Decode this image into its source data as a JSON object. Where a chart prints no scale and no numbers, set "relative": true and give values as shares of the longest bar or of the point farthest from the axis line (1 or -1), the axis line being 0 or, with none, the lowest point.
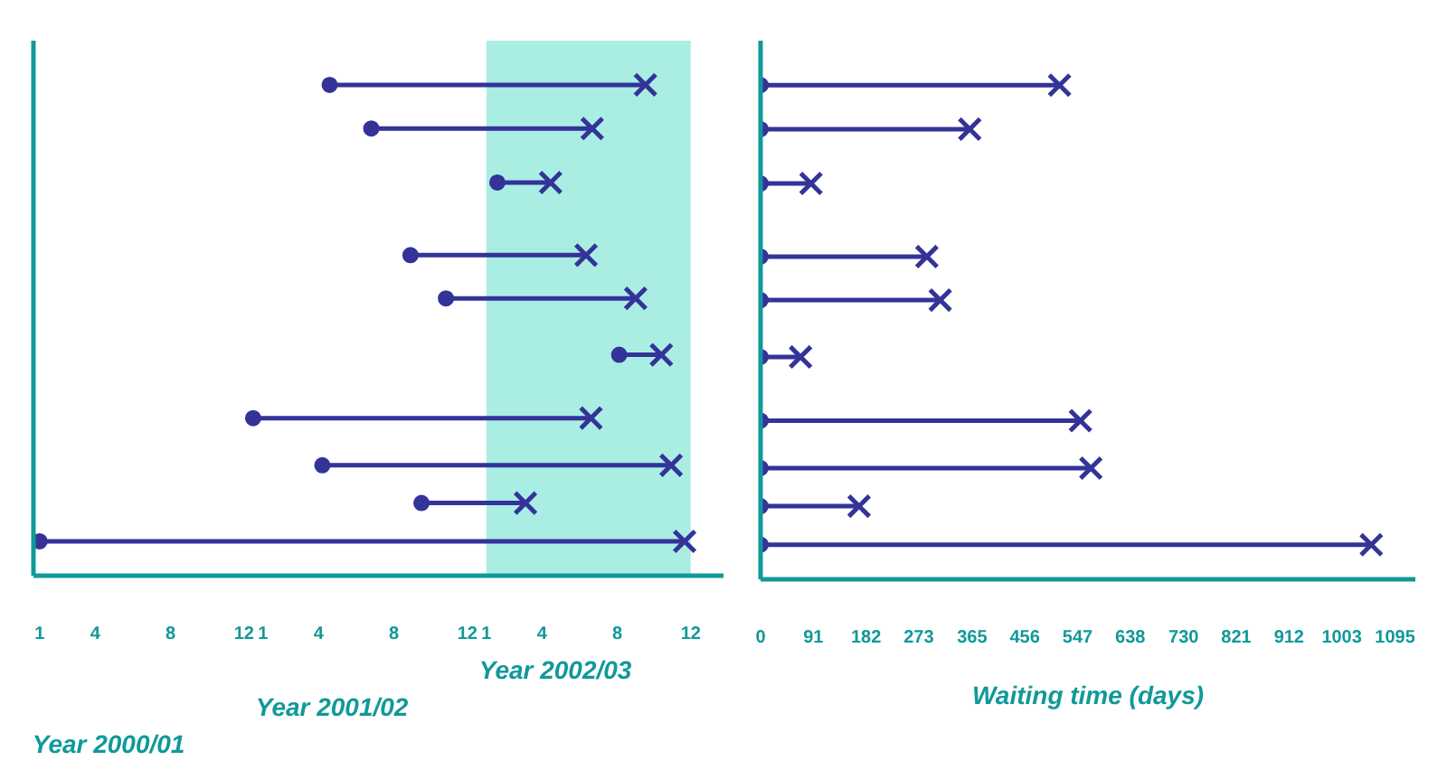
{
  "chart_data": [
    {
      "type": "line",
      "relative": true,
      "line_style": "solid",
      "xlim": [
        "2000-03-22",
        "2003-04-25"
      ],
      "xticks": [
        {
          "value": "2000-04",
          "label": "1"
        },
        {
          "value": "2000-07",
          "label": "4"
        },
        {
          "value": "2000-11",
          "label": "8"
        },
        {
          "value": "2001-03",
          "label": "12"
        },
        {
          "value": "2001-04",
          "label": "1"
        },
        {
          "value": "2001-07",
          "label": "4"
        },
        {
          "value": "2001-11",
          "label": "8"
        },
        {
          "value": "2002-03",
          "label": "12"
        },
        {
          "value": "2002-04",
          "label": "1"
        },
        {
          "value": "2002-07",
          "label": "4"
        },
        {
          "value": "2002-11",
          "label": "8"
        },
        {
          "value": "2003-03",
          "label": "12"
        }
      ],
      "series": [
        {
          "x": [
            "2001-07-19",
            "2002-12-17"
          ],
          "values": [
            1,
            1
          ],
          "color": "#333399",
          "marker": "none"
        },
        {
          "x": [
            "2001-09-25",
            "2002-09-21"
          ],
          "values": [
            0.911,
            0.911
          ],
          "color": "#333399",
          "marker": "none"
        },
        {
          "x": [
            "2002-04-19",
            "2002-07-15"
          ],
          "values": [
            0.801,
            0.801
          ],
          "color": "#333399",
          "marker": "none"
        },
        {
          "x": [
            "2001-11-28",
            "2002-09-11"
          ],
          "values": [
            0.653,
            0.653
          ],
          "color": "#333399",
          "marker": "none"
        },
        {
          "x": [
            "2002-01-25",
            "2002-12-01"
          ],
          "values": [
            0.565,
            0.565
          ],
          "color": "#333399",
          "marker": "none"
        },
        {
          "x": [
            "2002-11-04",
            "2003-01-12"
          ],
          "values": [
            0.45,
            0.45
          ],
          "color": "#333399",
          "marker": "none"
        },
        {
          "x": [
            "2001-03-16",
            "2002-09-19"
          ],
          "values": [
            0.321,
            0.321
          ],
          "color": "#333399",
          "marker": "none"
        },
        {
          "x": [
            "2001-07-07",
            "2003-01-28"
          ],
          "values": [
            0.225,
            0.225
          ],
          "color": "#333399",
          "marker": "none"
        },
        {
          "x": [
            "2001-12-16",
            "2002-06-04"
          ],
          "values": [
            0.148,
            0.148
          ],
          "color": "#333399",
          "marker": "none"
        },
        {
          "x": [
            "2000-04-01",
            "2003-02-19"
          ],
          "values": [
            0.07,
            0.07
          ],
          "color": "#333399",
          "marker": "none"
        },
        {
          "type": "scatter",
          "x": [
            "2001-07-19",
            "2001-09-25",
            "2002-04-19",
            "2001-11-28",
            "2002-01-25",
            "2002-11-04",
            "2001-03-16",
            "2001-07-07",
            "2001-12-16",
            "2000-04-01"
          ],
          "values": [
            1,
            0.911,
            0.801,
            0.653,
            0.565,
            0.45,
            0.321,
            0.225,
            0.148,
            0.07
          ],
          "color": "#333399",
          "marker": "circle"
        },
        {
          "type": "scatter",
          "x": [
            "2002-12-17",
            "2002-09-21",
            "2002-07-15",
            "2002-09-11",
            "2002-12-01",
            "2003-01-12",
            "2002-09-19",
            "2003-01-28",
            "2002-06-04",
            "2003-02-19"
          ],
          "values": [
            1,
            0.911,
            0.801,
            0.653,
            0.565,
            0.45,
            0.321,
            0.225,
            0.148,
            0.07
          ],
          "color": "#333399",
          "marker": "cross"
        }
      ],
      "bands": [
        {
          "axis": "x",
          "from": "2002-04",
          "to": "2003-03",
          "color": "#aaeee3"
        }
      ],
      "annotations": [
        "Year 2000/01",
        "Year 2001/02",
        "Year 2002/03"
      ],
      "tick_labels": "x"
    },
    {
      "type": "line",
      "relative": true,
      "line_style": "solid",
      "xlim": [
        0,
        1130
      ],
      "xticks": [
        0,
        91,
        182,
        273,
        365,
        456,
        547,
        638,
        730,
        821,
        912,
        1003,
        1095
      ],
      "series": [
        {
          "x": [
            0,
            516
          ],
          "values": [
            1,
            1
          ],
          "color": "#333399",
          "marker": "none"
        },
        {
          "x": [
            0,
            361
          ],
          "values": [
            0.911,
            0.911
          ],
          "color": "#333399",
          "marker": "none"
        },
        {
          "x": [
            0,
            87
          ],
          "values": [
            0.801,
            0.801
          ],
          "color": "#333399",
          "marker": "none"
        },
        {
          "x": [
            0,
            287
          ],
          "values": [
            0.653,
            0.653
          ],
          "color": "#333399",
          "marker": "none"
        },
        {
          "x": [
            0,
            310
          ],
          "values": [
            0.565,
            0.565
          ],
          "color": "#333399",
          "marker": "none"
        },
        {
          "x": [
            0,
            69
          ],
          "values": [
            0.45,
            0.45
          ],
          "color": "#333399",
          "marker": "none"
        },
        {
          "x": [
            0,
            552
          ],
          "values": [
            0.321,
            0.321
          ],
          "color": "#333399",
          "marker": "none"
        },
        {
          "x": [
            0,
            570
          ],
          "values": [
            0.225,
            0.225
          ],
          "color": "#333399",
          "marker": "none"
        },
        {
          "x": [
            0,
            170
          ],
          "values": [
            0.148,
            0.148
          ],
          "color": "#333399",
          "marker": "none"
        },
        {
          "x": [
            0,
            1054
          ],
          "values": [
            0.07,
            0.07
          ],
          "color": "#333399",
          "marker": "none"
        },
        {
          "type": "scatter",
          "x": [
            0,
            0,
            0,
            0,
            0,
            0,
            0,
            0,
            0,
            0
          ],
          "values": [
            1,
            0.911,
            0.801,
            0.653,
            0.565,
            0.45,
            0.321,
            0.225,
            0.148,
            0.07
          ],
          "color": "#333399",
          "marker": "circle"
        },
        {
          "type": "scatter",
          "x": [
            516,
            361,
            87,
            287,
            310,
            69,
            552,
            570,
            170,
            1054
          ],
          "values": [
            1,
            0.911,
            0.801,
            0.653,
            0.565,
            0.45,
            0.321,
            0.225,
            0.148,
            0.07
          ],
          "color": "#333399",
          "marker": "cross"
        }
      ],
      "xlabel": "Waiting time (days)",
      "tick_labels": "x"
    }
  ]
}
